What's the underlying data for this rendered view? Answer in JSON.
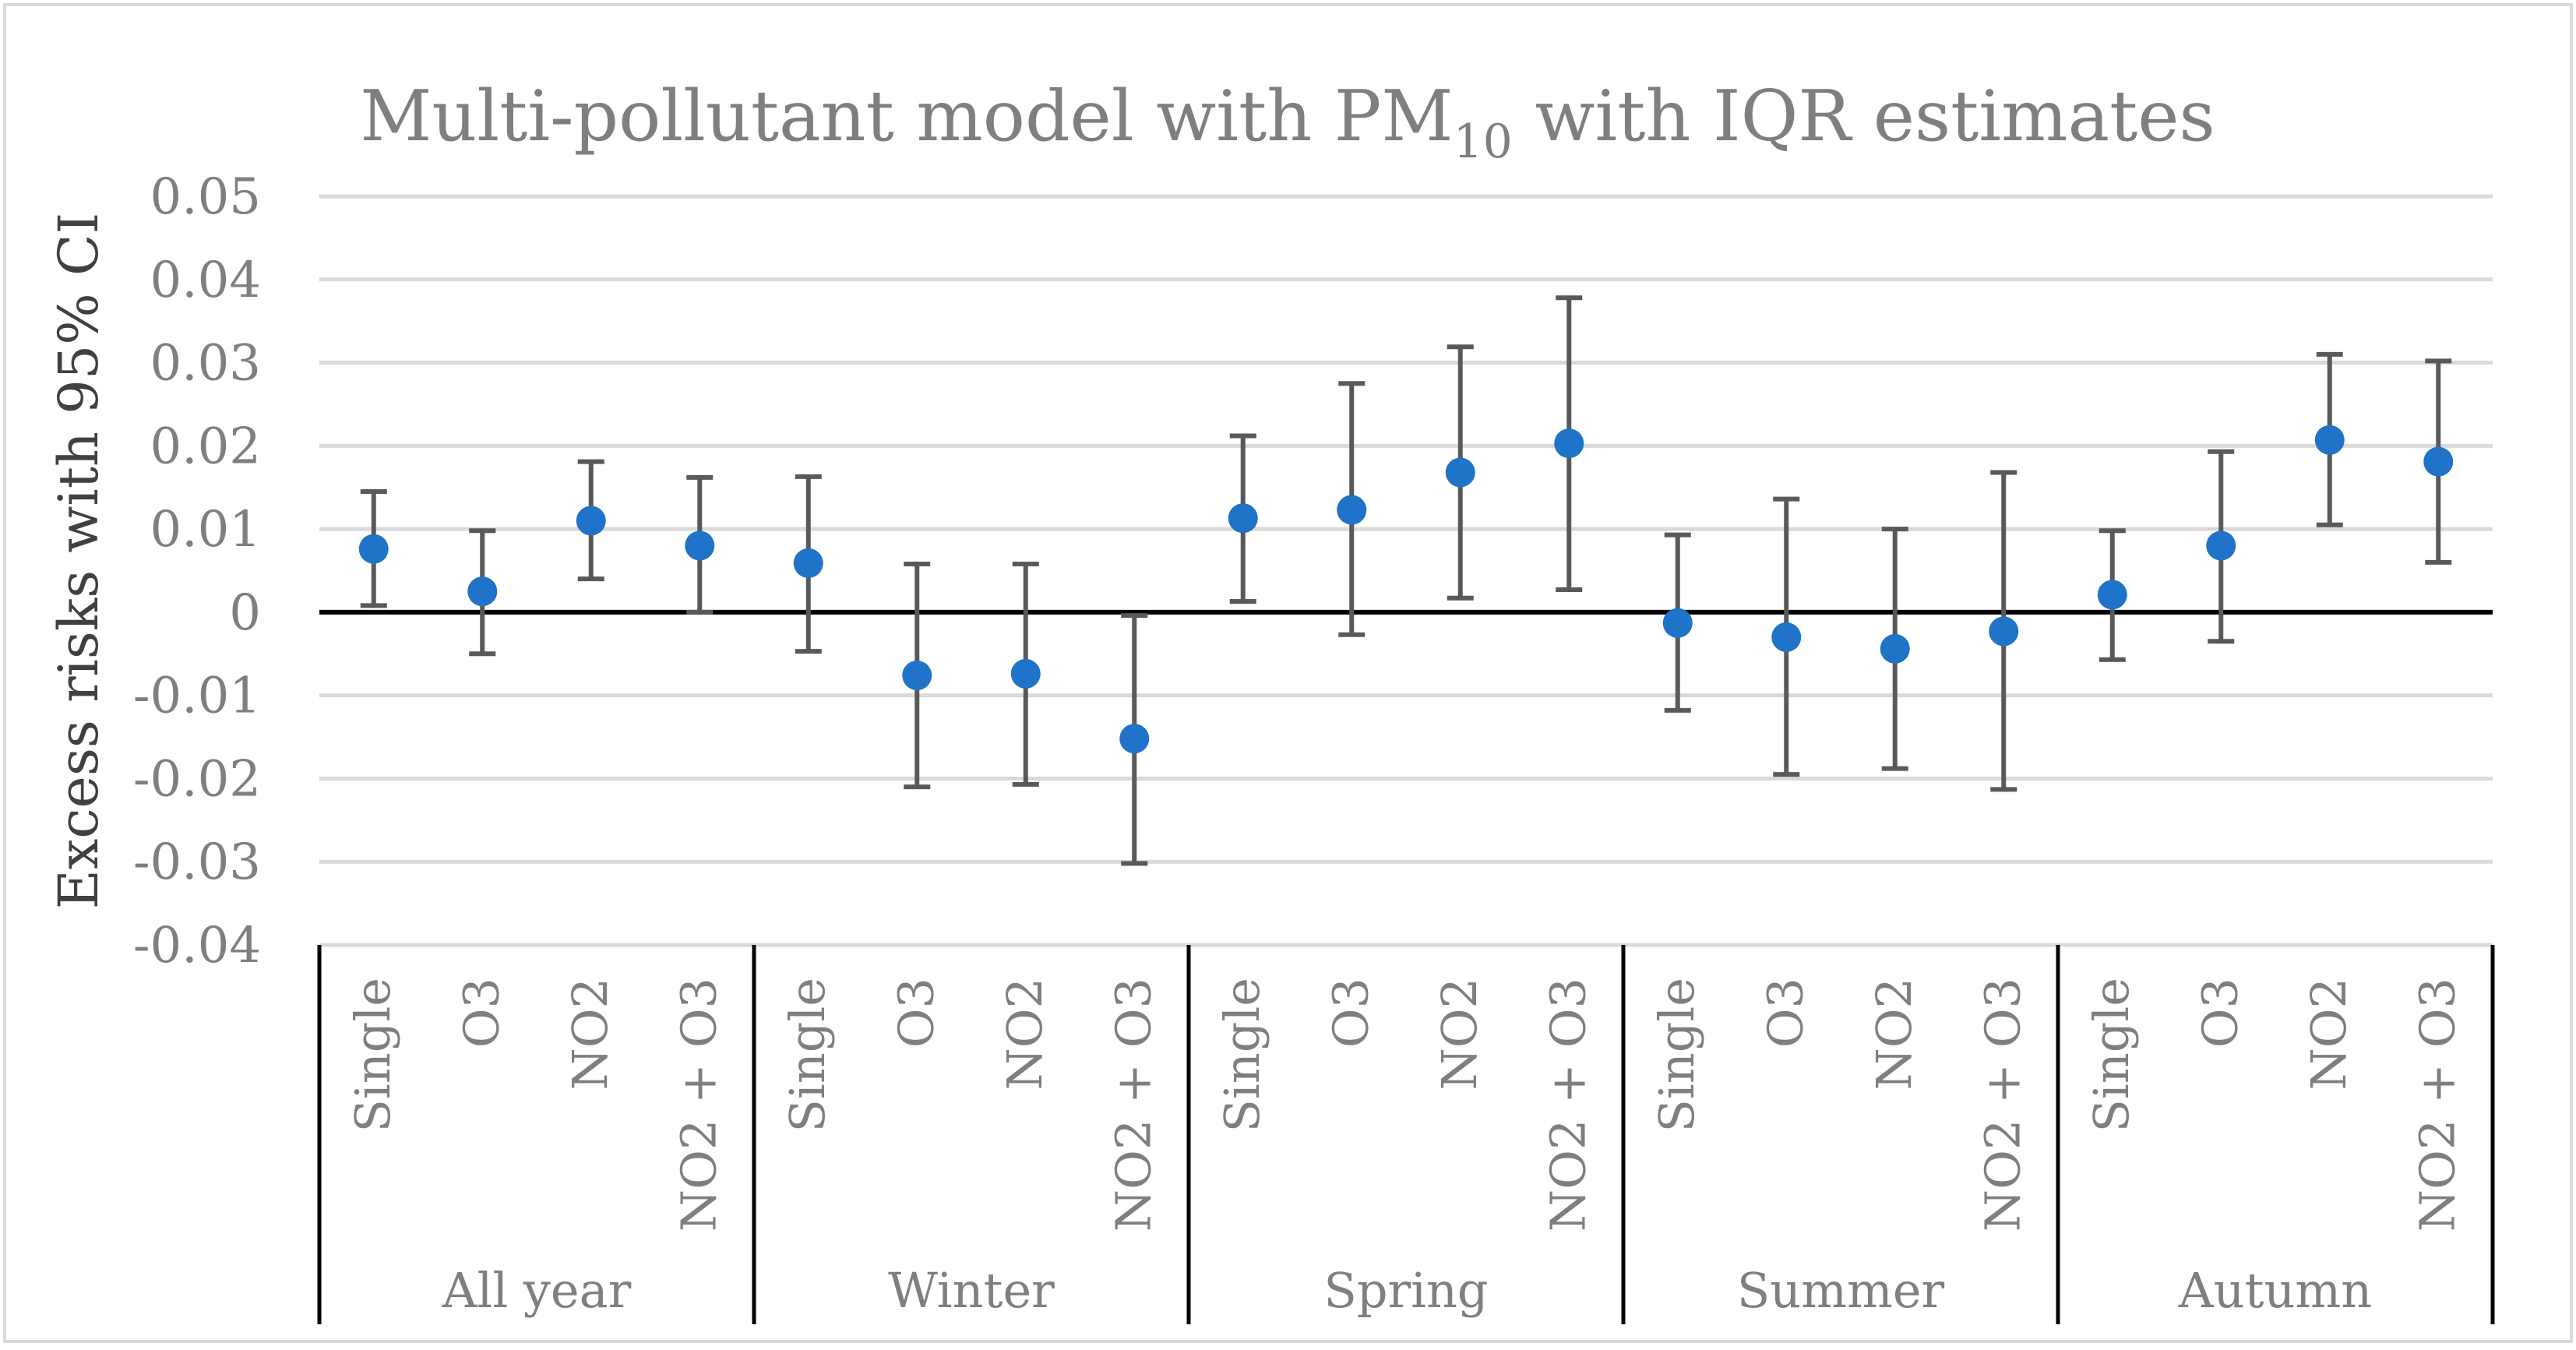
{
  "chart_data": {
    "type": "scatter",
    "title_main": "Multi-pollutant model with PM",
    "title_sub": "10",
    "title_tail": " with IQR estimates",
    "ylabel": "Excess risks with 95% CI",
    "xlabel": "",
    "ylim": [
      -0.04,
      0.05
    ],
    "yticks": [
      -0.04,
      -0.03,
      -0.02,
      -0.01,
      0,
      0.01,
      0.02,
      0.03,
      0.04,
      0.05
    ],
    "ytick_labels": [
      "-0.04",
      "-0.03",
      "-0.02",
      "-0.01",
      "0",
      "0.01",
      "0.02",
      "0.03",
      "0.04",
      "0.05"
    ],
    "grid": true,
    "marker_color": "#1f73c8",
    "errorbar_color": "#595959",
    "groups": [
      {
        "name": "All year",
        "points": [
          {
            "label": "Single",
            "value": 0.0076,
            "lower": 0.0008,
            "upper": 0.0145
          },
          {
            "label": "O3",
            "value": 0.0025,
            "lower": -0.005,
            "upper": 0.0098
          },
          {
            "label": "NO2",
            "value": 0.011,
            "lower": 0.004,
            "upper": 0.0181
          },
          {
            "label": "NO2 + O3",
            "value": 0.008,
            "lower": 0.0,
            "upper": 0.0162
          }
        ]
      },
      {
        "name": "Winter",
        "points": [
          {
            "label": "Single",
            "value": 0.0059,
            "lower": -0.0047,
            "upper": 0.0163
          },
          {
            "label": "O3",
            "value": -0.0076,
            "lower": -0.021,
            "upper": 0.0058
          },
          {
            "label": "NO2",
            "value": -0.0074,
            "lower": -0.0207,
            "upper": 0.0058
          },
          {
            "label": "NO2 + O3",
            "value": -0.0152,
            "lower": -0.0302,
            "upper": -0.0004
          }
        ]
      },
      {
        "name": "Spring",
        "points": [
          {
            "label": "Single",
            "value": 0.0113,
            "lower": 0.0013,
            "upper": 0.0212
          },
          {
            "label": "O3",
            "value": 0.0123,
            "lower": -0.0027,
            "upper": 0.0275
          },
          {
            "label": "NO2",
            "value": 0.0168,
            "lower": 0.0017,
            "upper": 0.0319
          },
          {
            "label": "NO2 + O3",
            "value": 0.0203,
            "lower": 0.0027,
            "upper": 0.0378
          }
        ]
      },
      {
        "name": "Summer",
        "points": [
          {
            "label": "Single",
            "value": -0.0013,
            "lower": -0.0118,
            "upper": 0.0093
          },
          {
            "label": "O3",
            "value": -0.003,
            "lower": -0.0195,
            "upper": 0.0136
          },
          {
            "label": "NO2",
            "value": -0.0044,
            "lower": -0.0188,
            "upper": 0.01
          },
          {
            "label": "NO2 + O3",
            "value": -0.0023,
            "lower": -0.0213,
            "upper": 0.0168
          }
        ]
      },
      {
        "name": "Autumn",
        "points": [
          {
            "label": "Single",
            "value": 0.0021,
            "lower": -0.0057,
            "upper": 0.0098
          },
          {
            "label": "O3",
            "value": 0.008,
            "lower": -0.0035,
            "upper": 0.0193
          },
          {
            "label": "NO2",
            "value": 0.0207,
            "lower": 0.0105,
            "upper": 0.031
          },
          {
            "label": "NO2 + O3",
            "value": 0.0181,
            "lower": 0.006,
            "upper": 0.0302
          }
        ]
      }
    ]
  }
}
